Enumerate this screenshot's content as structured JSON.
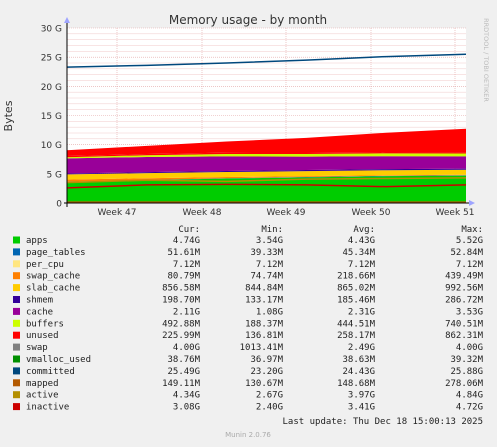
{
  "chart_data": {
    "type": "area",
    "title": "Memory usage - by month",
    "ylabel": "Bytes",
    "watermark": "RRDTOOL / TOBI OETIKER",
    "ylim": [
      0,
      30
    ],
    "yunit": "G",
    "yticks": [
      "0",
      "5 G",
      "10 G",
      "15 G",
      "20 G",
      "25 G",
      "30 G"
    ],
    "xticks": [
      "Week 47",
      "Week 48",
      "Week 49",
      "Week 50",
      "Week 51"
    ],
    "grid": true,
    "legend_headers": {
      "cur": "Cur:",
      "min": "Min:",
      "avg": "Avg:",
      "max": "Max:"
    },
    "series": [
      {
        "name": "apps",
        "color": "#00cc00",
        "cur": "4.74G",
        "min": "3.54G",
        "avg": "4.43G",
        "max": "5.52G",
        "values": [
          3.6,
          3.9,
          4.2,
          4.4,
          4.6,
          4.7
        ]
      },
      {
        "name": "page_tables",
        "color": "#0066b3",
        "cur": "51.61M",
        "min": "39.33M",
        "avg": "45.34M",
        "max": "52.84M",
        "values": [
          0.04,
          0.045,
          0.045,
          0.048,
          0.05,
          0.052
        ]
      },
      {
        "name": "per_cpu",
        "color": "#ffe680",
        "cur": "7.12M",
        "min": "7.12M",
        "avg": "7.12M",
        "max": "7.12M",
        "values": [
          0.007,
          0.007,
          0.007,
          0.007,
          0.007,
          0.007
        ]
      },
      {
        "name": "swap_cache",
        "color": "#ff8000",
        "cur": "80.79M",
        "min": "74.74M",
        "avg": "218.66M",
        "max": "439.49M",
        "values": [
          0.35,
          0.3,
          0.2,
          0.15,
          0.1,
          0.08
        ]
      },
      {
        "name": "slab_cache",
        "color": "#ffcc00",
        "cur": "856.58M",
        "min": "844.84M",
        "avg": "865.02M",
        "max": "992.56M",
        "values": [
          0.9,
          0.87,
          0.86,
          0.86,
          0.86,
          0.86
        ]
      },
      {
        "name": "shmem",
        "color": "#330099",
        "cur": "198.70M",
        "min": "133.17M",
        "avg": "185.46M",
        "max": "286.72M",
        "values": [
          0.15,
          0.17,
          0.18,
          0.19,
          0.2,
          0.2
        ]
      },
      {
        "name": "cache",
        "color": "#990099",
        "cur": "2.11G",
        "min": "1.08G",
        "avg": "2.31G",
        "max": "3.53G",
        "values": [
          2.6,
          2.6,
          2.5,
          2.3,
          2.2,
          2.1
        ]
      },
      {
        "name": "buffers",
        "color": "#ccff00",
        "cur": "492.88M",
        "min": "188.37M",
        "avg": "444.51M",
        "max": "740.51M",
        "values": [
          0.2,
          0.3,
          0.4,
          0.45,
          0.5,
          0.49
        ]
      },
      {
        "name": "unused",
        "color": "#ff0000",
        "cur": "225.99M",
        "min": "136.81M",
        "avg": "258.17M",
        "max": "862.31M",
        "values": [
          0.2,
          0.2,
          0.25,
          0.25,
          0.22,
          0.23
        ]
      },
      {
        "name": "swap",
        "color": "#808080",
        "cur": "4.00G",
        "min": "1013.41M",
        "avg": "2.49G",
        "max": "4.00G",
        "values": [
          1.0,
          1.4,
          1.9,
          2.5,
          3.3,
          4.0
        ]
      },
      {
        "name": "vmalloc_used",
        "color": "#008f00",
        "cur": "38.76M",
        "min": "36.97M",
        "avg": "38.63M",
        "max": "39.32M",
        "values": [
          0.04,
          0.04,
          0.04,
          0.04,
          0.04,
          0.04
        ]
      },
      {
        "name": "committed",
        "color": "#00487d",
        "cur": "25.49G",
        "min": "23.20G",
        "avg": "24.43G",
        "max": "25.88G",
        "values": [
          23.3,
          23.6,
          24.0,
          24.5,
          25.1,
          25.5
        ]
      },
      {
        "name": "mapped",
        "color": "#b35a00",
        "cur": "149.11M",
        "min": "130.67M",
        "avg": "148.68M",
        "max": "278.06M",
        "values": [
          0.14,
          0.15,
          0.15,
          0.15,
          0.15,
          0.15
        ]
      },
      {
        "name": "active",
        "color": "#b38f00",
        "cur": "4.34G",
        "min": "2.67G",
        "avg": "3.97G",
        "max": "4.84G",
        "values": [
          3.5,
          3.9,
          3.7,
          4.1,
          4.2,
          4.3
        ]
      },
      {
        "name": "inactive",
        "color": "#cc0000",
        "cur": "3.08G",
        "min": "2.40G",
        "avg": "3.41G",
        "max": "4.72G",
        "values": [
          2.6,
          3.1,
          3.2,
          3.1,
          2.8,
          3.1
        ]
      }
    ]
  },
  "footer": {
    "last_update": "Last update: Thu Dec 18 15:00:13 2025",
    "generator": "Munin 2.0.76"
  }
}
